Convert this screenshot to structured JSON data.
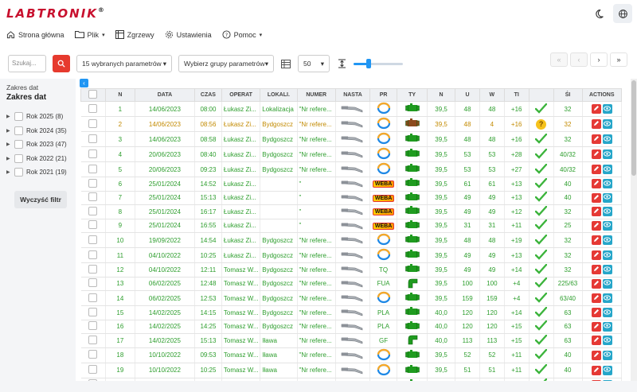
{
  "app": {
    "logo": "LABTRONIK",
    "logo_mark": "®"
  },
  "menu": [
    {
      "label": "Strona główna",
      "icon": "home-icon"
    },
    {
      "label": "Plik",
      "icon": "folder-icon",
      "dropdown": true
    },
    {
      "label": "Zgrzewy",
      "icon": "table-icon"
    },
    {
      "label": "Ustawienia",
      "icon": "gear-icon"
    },
    {
      "label": "Pomoc",
      "icon": "help-circle-icon",
      "dropdown": true
    }
  ],
  "toolbar": {
    "search_placeholder": "Szukaj...",
    "params_select": "15 wybranych parametrów",
    "groups_select": "Wybierz grupy parametrów",
    "page_size": "50",
    "row_height_level": 0.3
  },
  "pager": {
    "first": "«",
    "prev": "‹",
    "next": "›",
    "last": "»"
  },
  "sidebar": {
    "small_label": "Zakres dat",
    "title": "Zakres dat",
    "years": [
      "Rok 2025 (8)",
      "Rok 2024 (35)",
      "Rok 2023 (47)",
      "Rok 2022 (21)",
      "Rok 2021 (19)"
    ],
    "clear_label": "Wyczyść filtr"
  },
  "table": {
    "headers": [
      "",
      "N",
      "DATA",
      "CZAS",
      "OPERAT",
      "LOKALI.",
      "NUMER",
      "NASTA",
      "PR",
      "TY",
      "N",
      "U",
      "W",
      "TI",
      "",
      "ŚI",
      "ACTIONS"
    ],
    "rows": [
      {
        "n": "1",
        "date": "14/06/2023",
        "time": "08:00",
        "op": "Łukasz Zi...",
        "loc": "Lokalizacja",
        "num": "\"Nr refere...",
        "pr": "ring",
        "ty": "fit",
        "n2": "39,5",
        "u": "48",
        "w": "48",
        "ti": "+16",
        "st": "ok",
        "si": "32"
      },
      {
        "n": "2",
        "date": "14/06/2023",
        "time": "08:56",
        "op": "Łukasz Zi...",
        "loc": "Bydgoszcz",
        "num": "\"Nr refere...",
        "pr": "ring",
        "ty": "fitbrown",
        "n2": "39,5",
        "u": "48",
        "w": "4",
        "ti": "+16",
        "st": "warn",
        "si": "32"
      },
      {
        "n": "3",
        "date": "14/06/2023",
        "time": "08:58",
        "op": "Łukasz Zi...",
        "loc": "Bydgoszcz",
        "num": "\"Nr refere...",
        "pr": "ring",
        "ty": "fit",
        "n2": "39,5",
        "u": "48",
        "w": "48",
        "ti": "+16",
        "st": "ok",
        "si": "32"
      },
      {
        "n": "4",
        "date": "20/06/2023",
        "time": "08:40",
        "op": "Łukasz Zi...",
        "loc": "Bydgoszcz",
        "num": "\"Nr refere...",
        "pr": "ring",
        "ty": "fit",
        "n2": "39,5",
        "u": "53",
        "w": "53",
        "ti": "+28",
        "st": "ok",
        "si": "40/32"
      },
      {
        "n": "5",
        "date": "20/06/2023",
        "time": "09:23",
        "op": "Łukasz Zi...",
        "loc": "Bydgoszcz",
        "num": "\"Nr refere...",
        "pr": "ring",
        "ty": "fit",
        "n2": "39,5",
        "u": "53",
        "w": "53",
        "ti": "+27",
        "st": "ok",
        "si": "40/32"
      },
      {
        "n": "6",
        "date": "25/01/2024",
        "time": "14:52",
        "op": "Łukasz Zi...",
        "loc": "",
        "num": "\"",
        "pr": "weba",
        "ty": "fit",
        "n2": "39,5",
        "u": "61",
        "w": "61",
        "ti": "+13",
        "st": "ok",
        "si": "40"
      },
      {
        "n": "7",
        "date": "25/01/2024",
        "time": "15:13",
        "op": "Łukasz Zi...",
        "loc": "",
        "num": "\"",
        "pr": "weba",
        "ty": "fit",
        "n2": "39,5",
        "u": "49",
        "w": "49",
        "ti": "+13",
        "st": "ok",
        "si": "40"
      },
      {
        "n": "8",
        "date": "25/01/2024",
        "time": "16:17",
        "op": "Łukasz Zi...",
        "loc": "",
        "num": "\"",
        "pr": "weba",
        "ty": "fit",
        "n2": "39,5",
        "u": "49",
        "w": "49",
        "ti": "+12",
        "st": "ok",
        "si": "32"
      },
      {
        "n": "9",
        "date": "25/01/2024",
        "time": "16:55",
        "op": "Łukasz Zi...",
        "loc": "",
        "num": "\"",
        "pr": "weba",
        "ty": "fit",
        "n2": "39,5",
        "u": "31",
        "w": "31",
        "ti": "+11",
        "st": "ok",
        "si": "25"
      },
      {
        "n": "10",
        "date": "19/09/2022",
        "time": "14:54",
        "op": "Łukasz Zi...",
        "loc": "Bydgoszcz",
        "num": "\"Nr refere...",
        "pr": "ring",
        "ty": "fit",
        "n2": "39,5",
        "u": "48",
        "w": "48",
        "ti": "+19",
        "st": "ok",
        "si": "32"
      },
      {
        "n": "11",
        "date": "04/10/2022",
        "time": "10:25",
        "op": "Łukasz Zi...",
        "loc": "Bydgoszcz",
        "num": "\"Nr refere...",
        "pr": "ring",
        "ty": "fit",
        "n2": "39,5",
        "u": "49",
        "w": "49",
        "ti": "+13",
        "st": "ok",
        "si": "32"
      },
      {
        "n": "12",
        "date": "04/10/2022",
        "time": "12:11",
        "op": "Tomasz W...",
        "loc": "Bydgoszcz",
        "num": "\"Nr refere...",
        "pr": "TQ",
        "ty": "fit",
        "n2": "39,5",
        "u": "49",
        "w": "49",
        "ti": "+14",
        "st": "ok",
        "si": "32"
      },
      {
        "n": "13",
        "date": "06/02/2025",
        "time": "12:48",
        "op": "Tomasz W...",
        "loc": "Bydgoszcz",
        "num": "\"Nr refere...",
        "pr": "FUA",
        "ty": "elbow",
        "n2": "39,5",
        "u": "100",
        "w": "100",
        "ti": "+4",
        "st": "ok",
        "si": "225/63"
      },
      {
        "n": "14",
        "date": "06/02/2025",
        "time": "12:53",
        "op": "Tomasz W...",
        "loc": "Bydgoszcz",
        "num": "\"Nr refere...",
        "pr": "ring",
        "ty": "fit",
        "n2": "39,5",
        "u": "159",
        "w": "159",
        "ti": "+4",
        "st": "ok",
        "si": "63/40"
      },
      {
        "n": "15",
        "date": "14/02/2025",
        "time": "14:15",
        "op": "Tomasz W...",
        "loc": "Bydgoszcz",
        "num": "\"Nr refere...",
        "pr": "PLA",
        "ty": "fit",
        "n2": "40,0",
        "u": "120",
        "w": "120",
        "ti": "+14",
        "st": "ok",
        "si": "63"
      },
      {
        "n": "16",
        "date": "14/02/2025",
        "time": "14:25",
        "op": "Tomasz W...",
        "loc": "Bydgoszcz",
        "num": "\"Nr refere...",
        "pr": "PLA",
        "ty": "fit",
        "n2": "40,0",
        "u": "120",
        "w": "120",
        "ti": "+15",
        "st": "ok",
        "si": "63"
      },
      {
        "n": "17",
        "date": "14/02/2025",
        "time": "15:13",
        "op": "Tomasz W...",
        "loc": "Iława",
        "num": "\"Nr refere...",
        "pr": "GF",
        "ty": "elbow",
        "n2": "40,0",
        "u": "113",
        "w": "113",
        "ti": "+15",
        "st": "ok",
        "si": "63"
      },
      {
        "n": "18",
        "date": "10/10/2022",
        "time": "09:53",
        "op": "Tomasz W...",
        "loc": "Iława",
        "num": "\"Nr refere...",
        "pr": "ring",
        "ty": "fit",
        "n2": "39,5",
        "u": "52",
        "w": "52",
        "ti": "+11",
        "st": "ok",
        "si": "40"
      },
      {
        "n": "19",
        "date": "10/10/2022",
        "time": "10:25",
        "op": "Tomasz W...",
        "loc": "Iława",
        "num": "\"Nr refere...",
        "pr": "ring",
        "ty": "fit",
        "n2": "39,5",
        "u": "51",
        "w": "51",
        "ti": "+11",
        "st": "ok",
        "si": "40"
      },
      {
        "n": "20",
        "date": "23/03/2023",
        "time": "09:22",
        "op": "Tomasz W...",
        "loc": "Iława",
        "num": "\"Nr refere...",
        "pr": "TQ",
        "ty": "fit",
        "n2": "39,5",
        "u": "45",
        "w": "45",
        "ti": "+10",
        "st": "ok",
        "si": "32"
      }
    ],
    "weba_label": "WEBA"
  },
  "colors": {
    "accent": "#2196f3",
    "brand": "#c8102e",
    "ok": "#2e9e2e",
    "warn": "#c28a00"
  }
}
